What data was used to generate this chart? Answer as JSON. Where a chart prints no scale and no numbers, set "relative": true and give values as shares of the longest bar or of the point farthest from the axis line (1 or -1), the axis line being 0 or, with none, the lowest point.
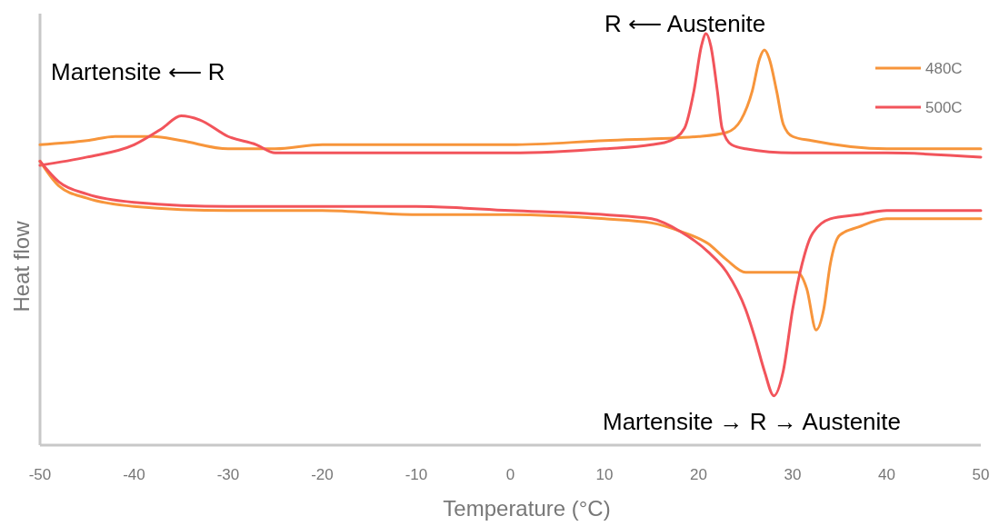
{
  "chart_data": {
    "type": "line",
    "relative": true,
    "xlabel": "Temperature (°C)",
    "ylabel": "Heat flow",
    "xlim": [
      -50,
      50
    ],
    "xticks": [
      -50,
      -40,
      -30,
      -20,
      -10,
      0,
      10,
      20,
      30,
      40,
      50
    ],
    "grid": false,
    "legend": "top right",
    "marker": "none",
    "line_style": "solid",
    "annotations": [
      "Martensite ⟵ R",
      "R ⟵ Austenite",
      "Martensite → R → Austenite"
    ],
    "series": [
      {
        "name": "480C",
        "color": "#f7953b",
        "x": [
          -50,
          -45,
          -42,
          -38,
          -35,
          -30,
          -25,
          -20,
          -10,
          0,
          10,
          20,
          23,
          24.5,
          25.7,
          26.5,
          27,
          27.5,
          28.3,
          29,
          30,
          32,
          40,
          50
        ],
        "values": [
          0.73,
          0.74,
          0.75,
          0.75,
          0.74,
          0.72,
          0.72,
          0.73,
          0.73,
          0.73,
          0.74,
          0.75,
          0.76,
          0.79,
          0.86,
          0.94,
          0.96,
          0.94,
          0.86,
          0.78,
          0.75,
          0.74,
          0.72,
          0.72
        ]
      },
      {
        "name": "500C",
        "color": "#f2545b",
        "x": [
          -50,
          -45,
          -40,
          -37,
          -35,
          -33,
          -30,
          -27,
          -25,
          -20,
          -10,
          0,
          10,
          15,
          17,
          18.5,
          19.5,
          20.3,
          20.8,
          21.3,
          22,
          22.5,
          23.5,
          25,
          30,
          40,
          50
        ],
        "values": [
          0.68,
          0.7,
          0.73,
          0.77,
          0.8,
          0.79,
          0.75,
          0.73,
          0.71,
          0.71,
          0.71,
          0.71,
          0.72,
          0.73,
          0.74,
          0.77,
          0.86,
          0.97,
          1,
          0.97,
          0.86,
          0.77,
          0.73,
          0.72,
          0.71,
          0.71,
          0.7
        ]
      },
      {
        "color": "#f7953b",
        "x": [
          -50,
          -48,
          -45,
          -40,
          -30,
          -20,
          -10,
          0,
          10,
          15,
          18,
          21,
          23,
          25,
          27,
          29,
          30.5,
          31.5,
          32.5,
          33.3,
          34,
          35,
          37,
          40,
          50
        ],
        "values": [
          0.69,
          0.63,
          0.6,
          0.58,
          0.57,
          0.57,
          0.56,
          0.56,
          0.55,
          0.54,
          0.52,
          0.49,
          0.45,
          0.42,
          0.42,
          0.42,
          0.42,
          0.38,
          0.28,
          0.33,
          0.44,
          0.51,
          0.53,
          0.55,
          0.55
        ]
      },
      {
        "color": "#f2545b",
        "x": [
          -50,
          -48,
          -45,
          -40,
          -30,
          -20,
          -10,
          0,
          10,
          15,
          18,
          21,
          23,
          25,
          26,
          27,
          28,
          29,
          30,
          31,
          32,
          34,
          37,
          40,
          50
        ],
        "values": [
          0.69,
          0.64,
          0.61,
          0.59,
          0.58,
          0.58,
          0.58,
          0.57,
          0.56,
          0.55,
          0.52,
          0.47,
          0.42,
          0.33,
          0.26,
          0.18,
          0.12,
          0.18,
          0.33,
          0.44,
          0.51,
          0.55,
          0.56,
          0.57,
          0.57
        ]
      }
    ]
  }
}
